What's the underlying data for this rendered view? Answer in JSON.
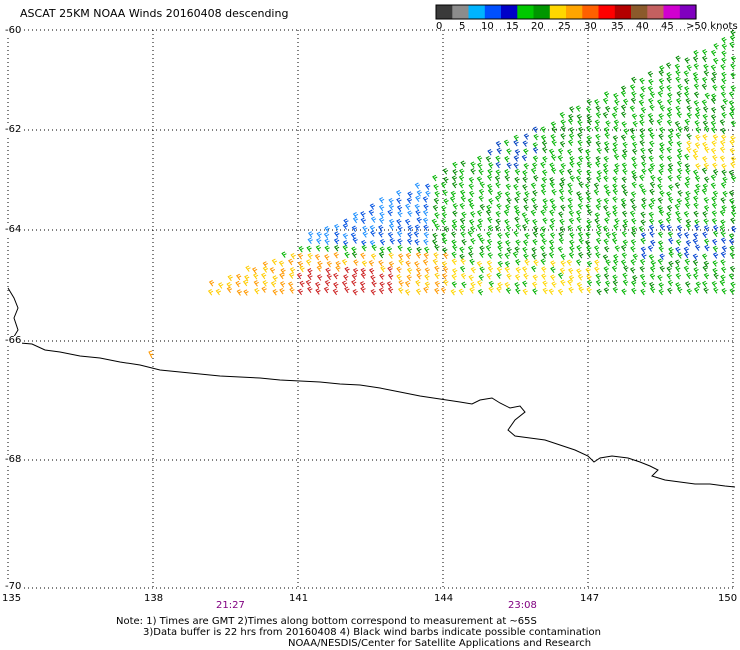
{
  "title": "ASCAT 25KM NOAA Winds 20160408 descending",
  "legend": {
    "colors": [
      "#3a3a3a",
      "#8c8c8c",
      "#00b4ff",
      "#0050ff",
      "#0000c8",
      "#00c800",
      "#009600",
      "#ffd700",
      "#ffa500",
      "#ff6000",
      "#ff0000",
      "#b40000",
      "#8b5a2b",
      "#c46060",
      "#d000d0",
      "#8000c0"
    ],
    "labels": [
      "0",
      "5",
      "10",
      "15",
      "20",
      "25",
      "30",
      "35",
      "40",
      "45",
      ">50 knots"
    ]
  },
  "axes": {
    "lat_labels": [
      "-60",
      "-62",
      "-64",
      "-66",
      "-68",
      "-70"
    ],
    "lon_labels": [
      "135",
      "138",
      "141",
      "144",
      "147",
      "150"
    ]
  },
  "times": [
    "21:27",
    "23:08"
  ],
  "notes": {
    "line1": "Note: 1) Times are GMT 2)Times along bottom correspond to measurement at ~65S",
    "line2": "3)Data buffer is 22 hrs from 20160408 4) Black wind barbs indicate possible contamination",
    "line3": "NOAA/NESDIS/Center for Satellite Applications and Research"
  }
}
